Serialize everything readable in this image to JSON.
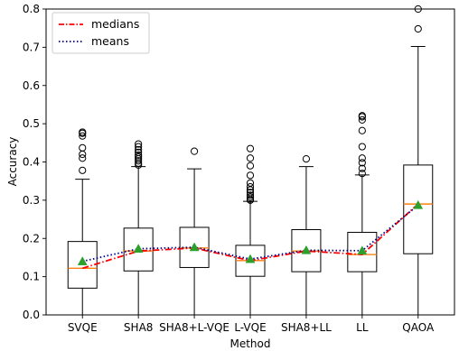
{
  "chart_data": {
    "type": "box",
    "xlabel": "Method",
    "ylabel": "Accuracy",
    "ylim": [
      0.0,
      0.8
    ],
    "yticks": [
      0.0,
      0.1,
      0.2,
      0.3,
      0.4,
      0.5,
      0.6,
      0.7,
      0.8
    ],
    "ytick_labels": [
      "0.0",
      "0.1",
      "0.2",
      "0.3",
      "0.4",
      "0.5",
      "0.6",
      "0.7",
      "0.8"
    ],
    "grid": false,
    "legend_position": "top-left",
    "categories": [
      "SVQE",
      "SHA8",
      "SHA8+L-VQE",
      "L-VQE",
      "SHA8+LL",
      "LL",
      "QAOA"
    ],
    "boxes": [
      {
        "label": "SVQE",
        "whisker_low": 0.0,
        "q1": 0.07,
        "median": 0.122,
        "q3": 0.192,
        "whisker_high": 0.355,
        "mean": 0.14,
        "outliers": [
          0.378,
          0.41,
          0.42,
          0.437,
          0.468,
          0.475,
          0.478
        ]
      },
      {
        "label": "SHA8",
        "whisker_low": 0.0,
        "q1": 0.115,
        "median": 0.167,
        "q3": 0.227,
        "whisker_high": 0.388,
        "mean": 0.173,
        "outliers": [
          0.392,
          0.397,
          0.403,
          0.408,
          0.413,
          0.418,
          0.425,
          0.432,
          0.44,
          0.447
        ]
      },
      {
        "label": "SHA8+L-VQE",
        "whisker_low": 0.0,
        "q1": 0.124,
        "median": 0.175,
        "q3": 0.229,
        "whisker_high": 0.382,
        "mean": 0.177,
        "outliers": [
          0.428
        ]
      },
      {
        "label": "L-VQE",
        "whisker_low": 0.0,
        "q1": 0.101,
        "median": 0.142,
        "q3": 0.182,
        "whisker_high": 0.297,
        "mean": 0.146,
        "outliers": [
          0.3,
          0.303,
          0.308,
          0.313,
          0.32,
          0.327,
          0.335,
          0.345,
          0.365,
          0.39,
          0.41,
          0.435
        ]
      },
      {
        "label": "SHA8+LL",
        "whisker_low": 0.0,
        "q1": 0.113,
        "median": 0.167,
        "q3": 0.223,
        "whisker_high": 0.388,
        "mean": 0.169,
        "outliers": [
          0.408
        ]
      },
      {
        "label": "LL",
        "whisker_low": 0.0,
        "q1": 0.113,
        "median": 0.158,
        "q3": 0.216,
        "whisker_high": 0.366,
        "mean": 0.168,
        "outliers": [
          0.37,
          0.383,
          0.398,
          0.41,
          0.44,
          0.482,
          0.51,
          0.518,
          0.521
        ]
      },
      {
        "label": "QAOA",
        "whisker_low": 0.0,
        "q1": 0.16,
        "median": 0.29,
        "q3": 0.392,
        "whisker_high": 0.702,
        "mean": 0.287,
        "outliers": [
          0.748,
          0.8
        ]
      }
    ],
    "series": [
      {
        "name": "medians",
        "style": "dash-dot",
        "color": "#ff0000",
        "values": [
          0.122,
          0.167,
          0.175,
          0.142,
          0.167,
          0.158,
          0.29
        ]
      },
      {
        "name": "means",
        "style": "dotted",
        "color": "#00008b",
        "values": [
          0.14,
          0.173,
          0.177,
          0.146,
          0.169,
          0.168,
          0.287
        ]
      }
    ],
    "colors": {
      "box_median": "#ff7f0e",
      "mean_marker": "#2ca02c",
      "box_line": "#000000"
    }
  }
}
